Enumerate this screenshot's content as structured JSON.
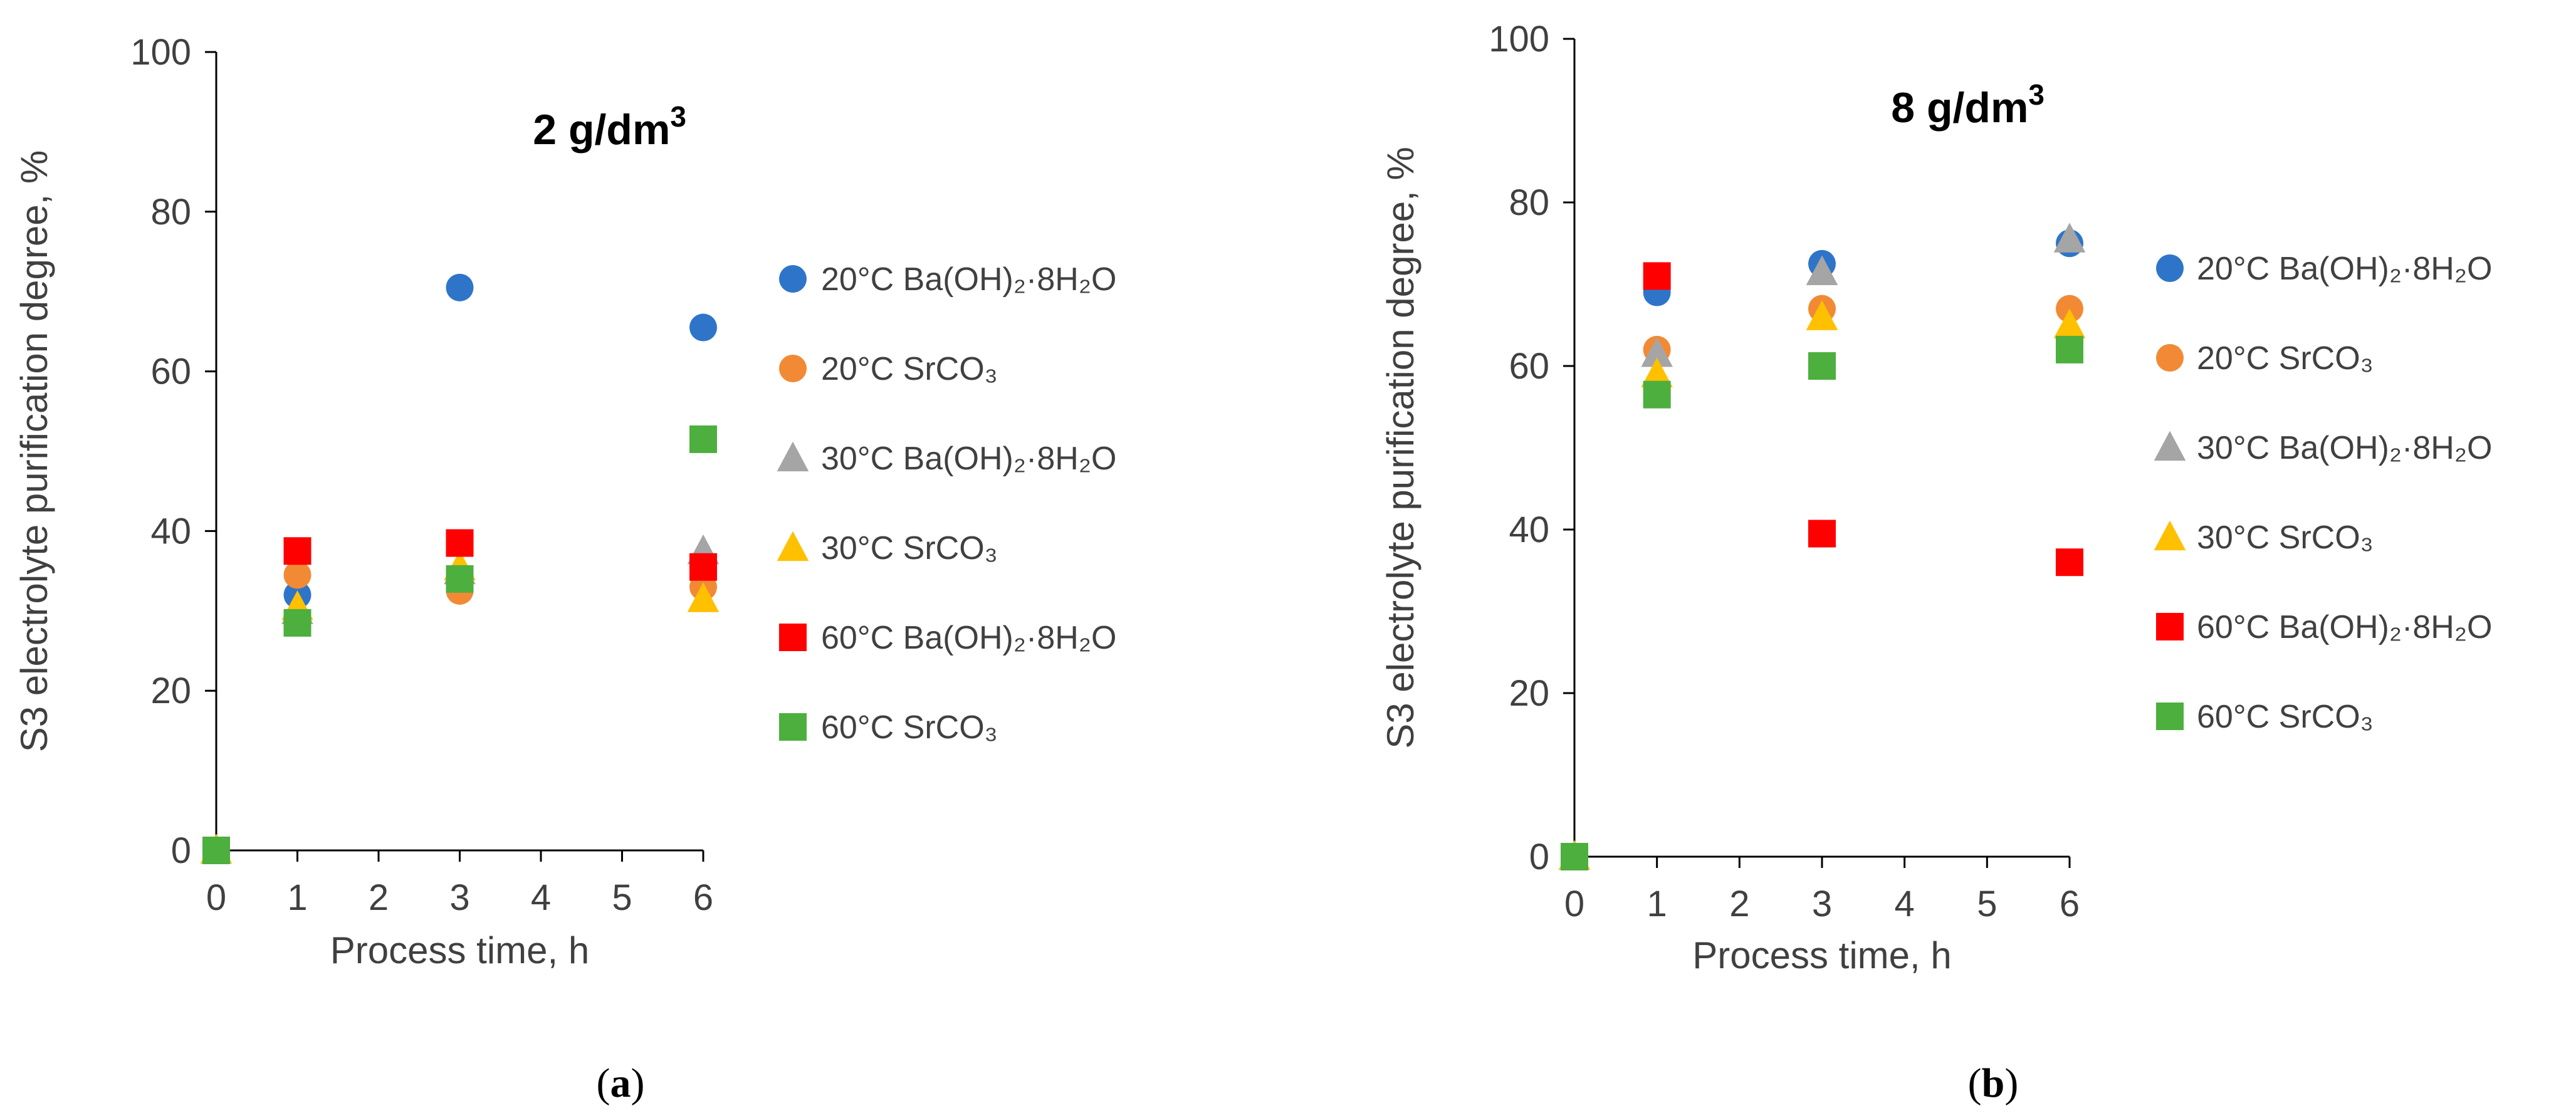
{
  "chart_data": [
    {
      "type": "scatter",
      "panel_id": "a",
      "caption_letter": "a",
      "title_text": "2 g/dm",
      "title_sup": "3",
      "xlabel": "Process time, h",
      "ylabel": "S3 electrolyte purification degree, %",
      "xlim": [
        0,
        6
      ],
      "ylim": [
        0,
        100
      ],
      "xticks": [
        "0",
        "1",
        "2",
        "3",
        "4",
        "5",
        "6"
      ],
      "yticks": [
        "0",
        "20",
        "40",
        "60",
        "80",
        "100"
      ],
      "legend_position": "right",
      "series": [
        {
          "name": "20°C Ba(OH)₂·8H₂O",
          "marker": "circle",
          "color": "#2E75C9",
          "x": [
            0,
            1,
            3,
            6
          ],
          "y": [
            0,
            32,
            70.5,
            65.5
          ]
        },
        {
          "name": "20°C SrCO₃",
          "marker": "circle",
          "color": "#F28A35",
          "x": [
            0,
            1,
            3,
            6
          ],
          "y": [
            0,
            34.5,
            32.5,
            33
          ]
        },
        {
          "name": "30°C Ba(OH)₂·8H₂O",
          "marker": "triangle",
          "color": "#A5A5A5",
          "x": [
            0,
            1,
            3,
            6
          ],
          "y": [
            0,
            30,
            35,
            37.5
          ]
        },
        {
          "name": "30°C SrCO₃",
          "marker": "triangle",
          "color": "#FFC000",
          "x": [
            0,
            1,
            3,
            6
          ],
          "y": [
            0,
            30.5,
            35.5,
            31.5
          ]
        },
        {
          "name": "60°C Ba(OH)₂·8H₂O",
          "marker": "square",
          "color": "#FF0000",
          "x": [
            0,
            1,
            3,
            6
          ],
          "y": [
            0,
            37.5,
            38.5,
            35.5
          ]
        },
        {
          "name": "60°C SrCO₃",
          "marker": "square",
          "color": "#4DAF3E",
          "x": [
            0,
            1,
            3,
            6
          ],
          "y": [
            0,
            28.5,
            34,
            51.5
          ]
        }
      ]
    },
    {
      "type": "scatter",
      "panel_id": "b",
      "caption_letter": "b",
      "title_text": "8 g/dm",
      "title_sup": "3",
      "xlabel": "Process time, h",
      "ylabel": "S3 electrolyte purification degree, %",
      "xlim": [
        0,
        6
      ],
      "ylim": [
        0,
        100
      ],
      "xticks": [
        "0",
        "1",
        "2",
        "3",
        "4",
        "5",
        "6"
      ],
      "yticks": [
        "0",
        "20",
        "40",
        "60",
        "80",
        "100"
      ],
      "legend_position": "right",
      "series": [
        {
          "name": "20°C Ba(OH)₂·8H₂O",
          "marker": "circle",
          "color": "#2E75C9",
          "x": [
            0,
            1,
            3,
            6
          ],
          "y": [
            0,
            69,
            72.5,
            75
          ]
        },
        {
          "name": "20°C SrCO₃",
          "marker": "circle",
          "color": "#F28A35",
          "x": [
            0,
            1,
            3,
            6
          ],
          "y": [
            0,
            62,
            67,
            67
          ]
        },
        {
          "name": "30°C Ba(OH)₂·8H₂O",
          "marker": "triangle",
          "color": "#A5A5A5",
          "x": [
            0,
            1,
            3,
            6
          ],
          "y": [
            0,
            61.5,
            71.5,
            75.5
          ]
        },
        {
          "name": "30°C SrCO₃",
          "marker": "triangle",
          "color": "#FFC000",
          "x": [
            0,
            1,
            3,
            6
          ],
          "y": [
            0,
            59,
            66,
            65
          ]
        },
        {
          "name": "60°C Ba(OH)₂·8H₂O",
          "marker": "square",
          "color": "#FF0000",
          "x": [
            0,
            1,
            3,
            6
          ],
          "y": [
            0,
            71,
            39.5,
            36
          ]
        },
        {
          "name": "60°C SrCO₃",
          "marker": "square",
          "color": "#4DAF3E",
          "x": [
            0,
            1,
            3,
            6
          ],
          "y": [
            0,
            56.5,
            60,
            62
          ]
        }
      ]
    }
  ]
}
